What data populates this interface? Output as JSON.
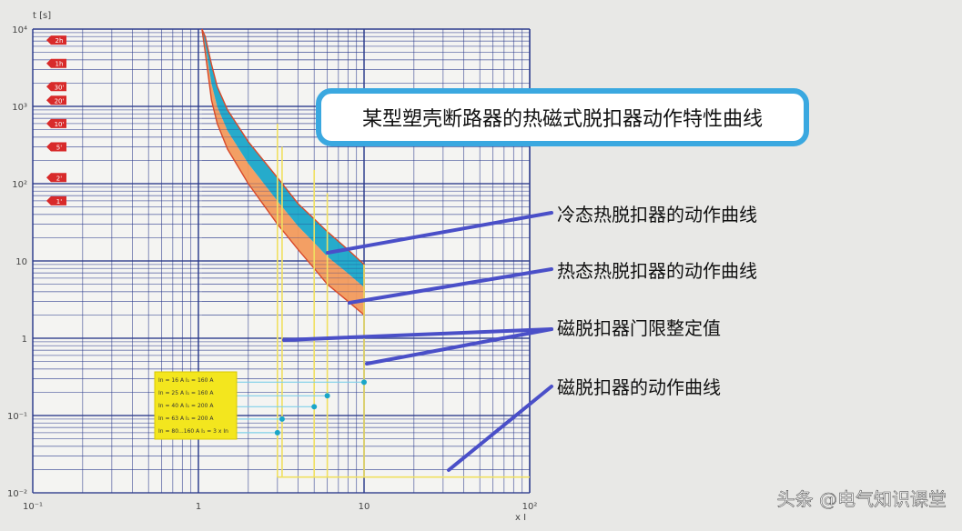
{
  "chart_data": {
    "type": "line",
    "title": "某型塑壳断路器的热磁式脱扣器动作特性曲线",
    "ylabel": "t [s]",
    "xlabel": "x I",
    "x_scale": "log",
    "y_scale": "log",
    "xlim": [
      0.1,
      100
    ],
    "ylim": [
      0.01,
      10000
    ],
    "grid": true,
    "x_ticks": [
      "10⁻¹",
      "1",
      "10",
      "10²"
    ],
    "y_ticks": [
      "10⁴",
      "10³",
      "10²",
      "10",
      "1",
      "10⁻¹",
      "10⁻²"
    ],
    "time_markers": [
      "2h",
      "1h",
      "30'",
      "20'",
      "10'",
      "5'",
      "2'",
      "1'"
    ],
    "time_markers_seconds": [
      7200,
      3600,
      1800,
      1200,
      600,
      300,
      120,
      60
    ],
    "series": [
      {
        "name": "冷态热脱扣器的动作曲线",
        "color": "#1aa6c8",
        "x": [
          1.05,
          1.1,
          1.2,
          1.3,
          1.5,
          2,
          3,
          4,
          5,
          6,
          8,
          10
        ],
        "y": [
          10000,
          8000,
          3500,
          1800,
          900,
          350,
          120,
          55,
          35,
          24,
          14,
          9
        ]
      },
      {
        "name": "热态热脱扣器的动作曲线",
        "color": "#f29a5c",
        "x": [
          1.05,
          1.1,
          1.2,
          1.3,
          1.5,
          2,
          3,
          4,
          5,
          6,
          8,
          10
        ],
        "y": [
          10000,
          5000,
          1200,
          600,
          280,
          100,
          30,
          14,
          8,
          5,
          3,
          2
        ]
      }
    ],
    "magnetic_thresholds": [
      3,
      3.2,
      5,
      6,
      10
    ],
    "magnetic_trip_times": [
      0.06,
      0.09,
      0.13,
      0.18,
      0.27
    ],
    "magnetic_curve_time": 0.016,
    "legend": {
      "placement": "bottom-left",
      "entries": [
        "In = 16 A I₁ = 160 A",
        "In = 25 A I₁ = 160 A",
        "In = 40 A I₁ = 200 A",
        "In = 63 A I₁ = 200 A",
        "In = 80...160 A I₁ = 3 x In"
      ]
    },
    "annotations": [
      "冷态热脱扣器的动作曲线",
      "热态热脱扣器的动作曲线",
      "磁脱扣器门限整定值",
      "磁脱扣器的动作曲线"
    ]
  },
  "watermark": "头条 @电气知识课堂",
  "colors": {
    "grid": "#2b3a8c",
    "cold_band": "#1aa6c8",
    "hot_band": "#f29a5c",
    "curve_edge": "#d84a2a",
    "magnetic": "#f0e060",
    "legend_bg": "#f3e61e",
    "marker": "#d82a2a",
    "callout_line": "#4a4fc8",
    "title_border": "#3aa8e0"
  }
}
